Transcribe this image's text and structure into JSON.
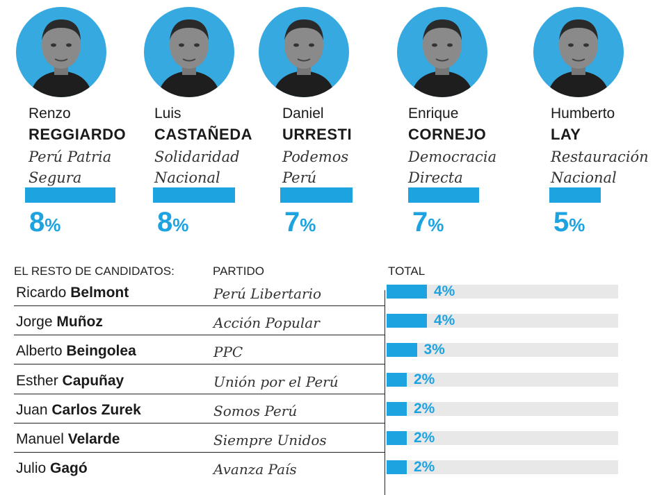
{
  "top_candidates": [
    {
      "first": "Renzo",
      "last": "REGGIARDO",
      "party_line1": "Perú Patria",
      "party_line2": "Segura",
      "pct": "8",
      "sign": "%",
      "value": 8,
      "photo": "portrait-reggiardo"
    },
    {
      "first": "Luis",
      "last": "CASTAÑEDA",
      "party_line1": "Solidaridad",
      "party_line2": "Nacional",
      "pct": "8",
      "sign": "%",
      "value": 8,
      "photo": "portrait-castaneda"
    },
    {
      "first": "Daniel",
      "last": "URRESTI",
      "party_line1": "Podemos",
      "party_line2": "Perú",
      "pct": "7",
      "sign": "%",
      "value": 7,
      "photo": "portrait-urresti"
    },
    {
      "first": "Enrique",
      "last": "CORNEJO",
      "party_line1": "Democracia",
      "party_line2": "Directa",
      "pct": "7",
      "sign": "%",
      "value": 7,
      "photo": "portrait-cornejo"
    },
    {
      "first": "Humberto",
      "last": "LAY",
      "party_line1": "Restauración",
      "party_line2": "Nacional",
      "pct": "5",
      "sign": "%",
      "value": 5,
      "photo": "portrait-lay"
    }
  ],
  "table": {
    "header_candidates": "EL RESTO DE CANDIDATOS:",
    "header_party": "PARTIDO",
    "header_total": "TOTAL",
    "rows": [
      {
        "first": "Ricardo",
        "last": "Belmont",
        "party": "Perú Libertario",
        "pct": "4%",
        "value": 4
      },
      {
        "first": "Jorge",
        "last": "Muñoz",
        "party": "Acción Popular",
        "pct": "4%",
        "value": 4
      },
      {
        "first": "Alberto",
        "last": "Beingolea",
        "party": "PPC",
        "pct": "3%",
        "value": 3
      },
      {
        "first": "Esther",
        "last": "Capuñay",
        "party": "Unión por el Perú",
        "pct": "2%",
        "value": 2
      },
      {
        "first": "Juan",
        "last": "Carlos Zurek",
        "party": "Somos Perú",
        "pct": "2%",
        "value": 2
      },
      {
        "first": "Manuel",
        "last": "Velarde",
        "party": "Siempre Unidos",
        "pct": "2%",
        "value": 2
      },
      {
        "first": "Julio",
        "last": "Gagó",
        "party": "Avanza País",
        "pct": "2%",
        "value": 2
      }
    ]
  },
  "colors": {
    "accent": "#1ca3e0",
    "portrait_bg": "#36a9e1",
    "track": "#e8e8e8"
  },
  "chart_data": {
    "type": "bar",
    "categories": [
      "Renzo REGGIARDO",
      "Luis CASTAÑEDA",
      "Daniel URRESTI",
      "Enrique CORNEJO",
      "Humberto LAY",
      "Ricardo Belmont",
      "Jorge Muñoz",
      "Alberto Beingolea",
      "Esther Capuñay",
      "Juan Carlos Zurek",
      "Manuel Velarde",
      "Julio Gagó"
    ],
    "values": [
      8,
      8,
      7,
      7,
      5,
      4,
      4,
      3,
      2,
      2,
      2,
      2
    ],
    "title": "",
    "xlabel": "",
    "ylabel": "TOTAL"
  }
}
